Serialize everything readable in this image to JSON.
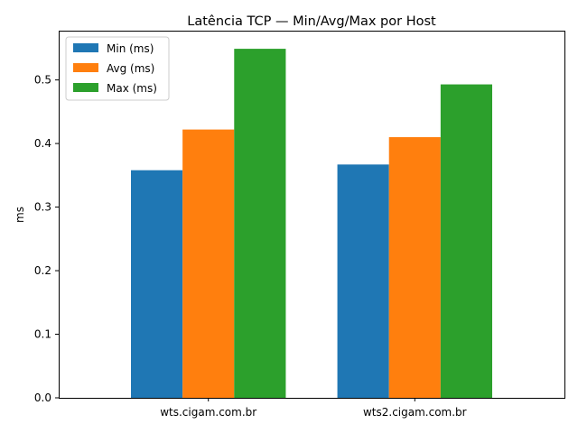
{
  "chart_data": {
    "type": "bar",
    "title": "Latência TCP — Min/Avg/Max por Host",
    "xlabel": "",
    "ylabel": "ms",
    "categories": [
      "wts.cigam.com.br",
      "wts2.cigam.com.br"
    ],
    "series": [
      {
        "name": "Min (ms)",
        "values": [
          0.358,
          0.367
        ],
        "color": "#1f77b4"
      },
      {
        "name": "Avg (ms)",
        "values": [
          0.422,
          0.41
        ],
        "color": "#ff7f0e"
      },
      {
        "name": "Max (ms)",
        "values": [
          0.549,
          0.493
        ],
        "color": "#2ca02c"
      }
    ],
    "ylim": [
      0,
      0.5775
    ],
    "yticks": [
      "0.0",
      "0.1",
      "0.2",
      "0.3",
      "0.4",
      "0.5"
    ],
    "grid": false,
    "legend_position": "top-left"
  }
}
